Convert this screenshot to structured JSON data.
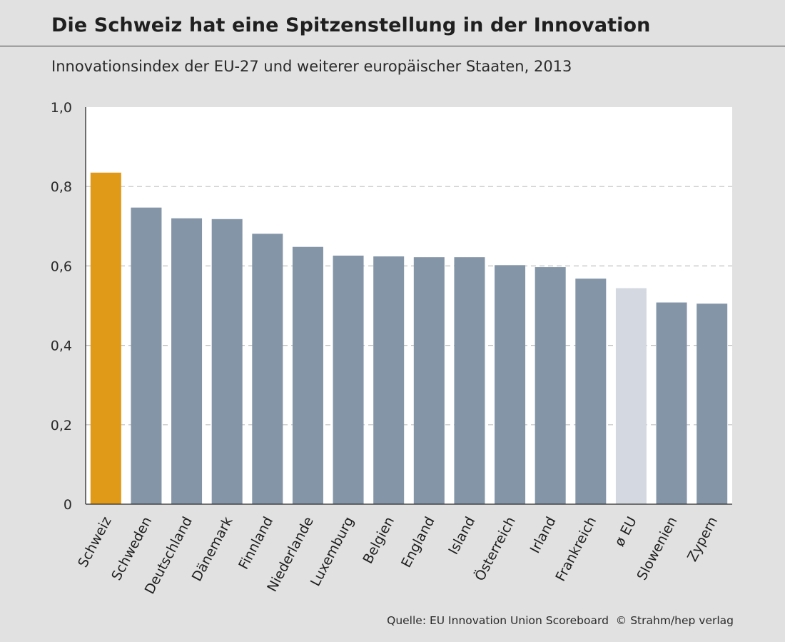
{
  "header": {
    "title": "Die Schweiz hat eine Spitzenstellung in der Innovation",
    "subtitle": "Innovationsindex der EU-27 und weiterer europäischer Staaten, 2013"
  },
  "footer": {
    "source": "Quelle: EU Innovation Union Scoreboard",
    "copyright": "© Strahm/hep verlag"
  },
  "colors": {
    "highlight": "#e09a17",
    "bar": "#8395a7",
    "average": "#d4d9e1",
    "plot_bg": "#ffffff",
    "page_bg": "#e1e1e1",
    "grid": "#c0c0c0"
  },
  "chart_data": {
    "type": "bar",
    "title": "Die Schweiz hat eine Spitzenstellung in der Innovation",
    "subtitle": "Innovationsindex der EU-27 und weiterer europäischer Staaten, 2013",
    "xlabel": "",
    "ylabel": "",
    "ylim": [
      0,
      1.0
    ],
    "yticks": [
      0,
      0.2,
      0.4,
      0.6,
      0.8,
      1.0
    ],
    "ytick_labels": [
      "0",
      "0,2",
      "0,4",
      "0,6",
      "0,8",
      "1,0"
    ],
    "grid": "horizontal dashed",
    "categories": [
      "Schweiz",
      "Schweden",
      "Deutschland",
      "Dänemark",
      "Finnland",
      "Niederlande",
      "Luxemburg",
      "Belgien",
      "England",
      "Island",
      "Österreich",
      "Irland",
      "Frankreich",
      "ø EU",
      "Slowenien",
      "Zypern"
    ],
    "values": [
      0.835,
      0.747,
      0.72,
      0.718,
      0.681,
      0.648,
      0.626,
      0.624,
      0.622,
      0.622,
      0.602,
      0.597,
      0.568,
      0.544,
      0.508,
      0.505
    ],
    "highlight": [
      "Schweiz"
    ],
    "average": [
      "ø EU"
    ]
  }
}
